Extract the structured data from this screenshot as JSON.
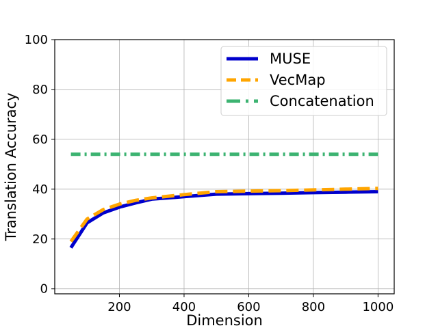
{
  "chart_data": {
    "type": "line",
    "xlabel": "Dimension",
    "ylabel": "Translation Accuracy",
    "xlim": [
      0,
      1050
    ],
    "ylim": [
      -2,
      100
    ],
    "xticks": [
      200,
      400,
      600,
      800,
      1000
    ],
    "yticks": [
      0,
      20,
      40,
      60,
      80,
      100
    ],
    "grid": true,
    "legend_position": "top-right",
    "series": [
      {
        "name": "MUSE",
        "color": "#0000cc",
        "style": "solid",
        "x": [
          50,
          100,
          150,
          200,
          250,
          300,
          400,
          500,
          600,
          700,
          800,
          900,
          1000
        ],
        "y": [
          16.5,
          26.5,
          30.5,
          32.8,
          34.5,
          36.0,
          37.0,
          38.0,
          38.2,
          38.4,
          38.6,
          38.8,
          39.0
        ]
      },
      {
        "name": "VecMap",
        "color": "#ffa500",
        "style": "dashed",
        "x": [
          50,
          100,
          150,
          200,
          250,
          300,
          400,
          500,
          600,
          700,
          800,
          900,
          1000
        ],
        "y": [
          19.0,
          28.0,
          31.8,
          34.0,
          35.5,
          36.5,
          37.8,
          39.0,
          39.2,
          39.4,
          39.7,
          40.0,
          40.3
        ]
      },
      {
        "name": "Concatenation",
        "color": "#3cb371",
        "style": "dashdot",
        "x": [
          50,
          1000
        ],
        "y": [
          54,
          54
        ]
      }
    ]
  }
}
